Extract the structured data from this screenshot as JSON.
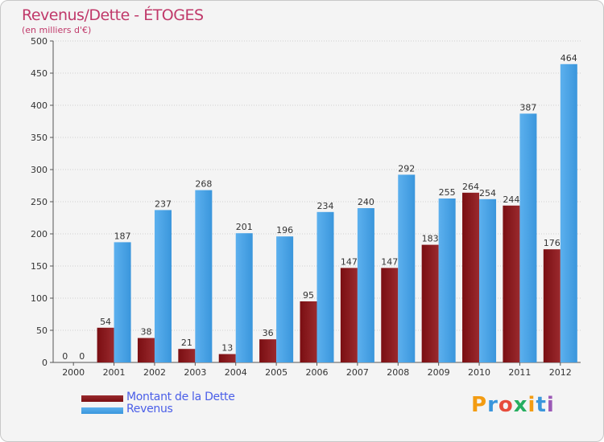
{
  "colors": {
    "debt": "#7a0e12",
    "debt_light": "#9a2a2e",
    "revenue": "#3a96dc",
    "revenue_light": "#5cb0ee",
    "title": "#c0396a",
    "legend_text": "#4a5ee8",
    "grid": "#d0d0d0"
  },
  "chart_data": {
    "type": "bar",
    "title": "Revenus/Dette - ÉTOGES",
    "subtitle": "(en milliers d'€)",
    "categories": [
      "2000",
      "2001",
      "2002",
      "2003",
      "2004",
      "2005",
      "2006",
      "2007",
      "2008",
      "2009",
      "2010",
      "2011",
      "2012"
    ],
    "series": [
      {
        "name": "Montant de la Dette",
        "values": [
          0,
          54,
          38,
          21,
          13,
          36,
          95,
          147,
          147,
          183,
          264,
          244,
          176
        ]
      },
      {
        "name": "Revenus",
        "values": [
          0,
          187,
          237,
          268,
          201,
          196,
          234,
          240,
          292,
          255,
          254,
          387,
          464
        ]
      }
    ],
    "ylim": [
      0,
      500
    ],
    "yticks": [
      0,
      50,
      100,
      150,
      200,
      250,
      300,
      350,
      400,
      450,
      500
    ],
    "xlabel": "",
    "ylabel": "",
    "grid": true,
    "legend": "bottom-left"
  },
  "logo": {
    "text": "Proxiti",
    "letters": [
      "P",
      "r",
      "o",
      "x",
      "i",
      "t",
      "i"
    ],
    "colors": [
      "#f39c12",
      "#3a96dc",
      "#e74c3c",
      "#27ae60",
      "#f39c12",
      "#3a96dc",
      "#9b59b6"
    ]
  }
}
